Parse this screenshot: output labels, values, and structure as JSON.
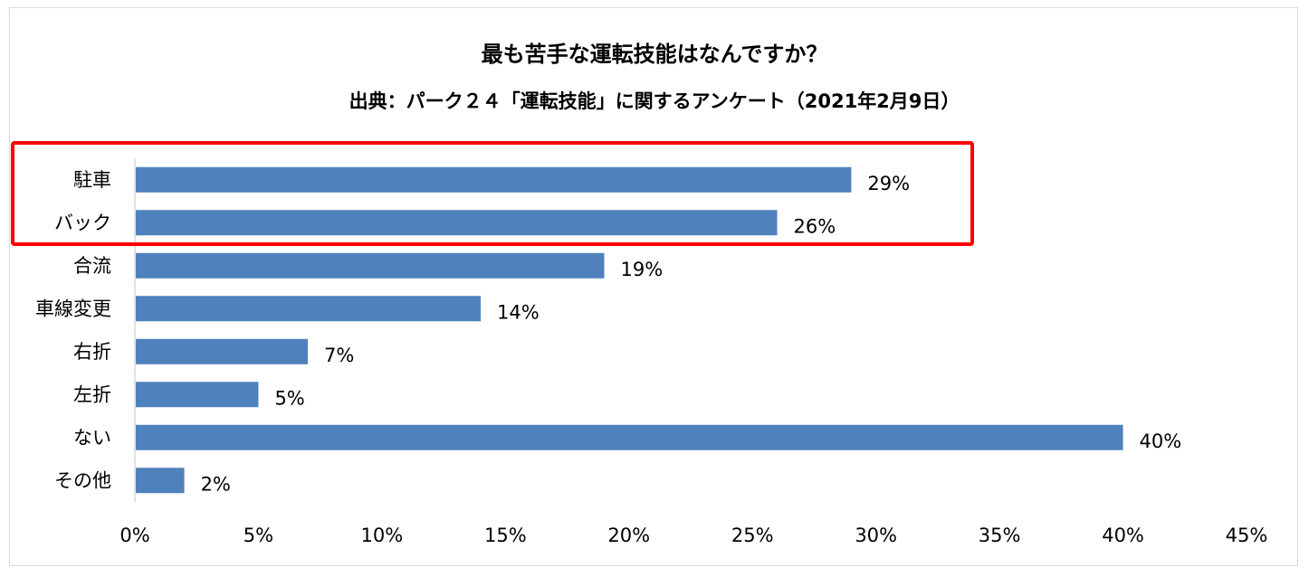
{
  "title": "最も苦手な運転技能はなんですか？",
  "subtitle": "出典：パーク２４「運転技能」に関するアンケート（2021年2月9日）",
  "chart_data": {
    "type": "bar",
    "orientation": "horizontal",
    "title": "最も苦手な運転技能はなんですか？",
    "subtitle": "出典：パーク２４「運転技能」に関するアンケート（2021年2月9日）",
    "categories": [
      "駐車",
      "バック",
      "合流",
      "車線変更",
      "右折",
      "左折",
      "ない",
      "その他"
    ],
    "values": [
      29,
      26,
      19,
      14,
      7,
      5,
      40,
      2
    ],
    "value_labels": [
      "29%",
      "26%",
      "19%",
      "14%",
      "7%",
      "5%",
      "40%",
      "2%"
    ],
    "xlim": [
      0,
      45
    ],
    "x_ticks": [
      "0%",
      "5%",
      "10%",
      "15%",
      "20%",
      "25%",
      "30%",
      "35%",
      "40%",
      "45%"
    ],
    "xlabel": "",
    "ylabel": "",
    "grid": false,
    "legend": "none",
    "highlight": {
      "categories": [
        "駐車",
        "バック"
      ],
      "color": "#ff0000"
    },
    "bar_color": "#4f81bd"
  }
}
